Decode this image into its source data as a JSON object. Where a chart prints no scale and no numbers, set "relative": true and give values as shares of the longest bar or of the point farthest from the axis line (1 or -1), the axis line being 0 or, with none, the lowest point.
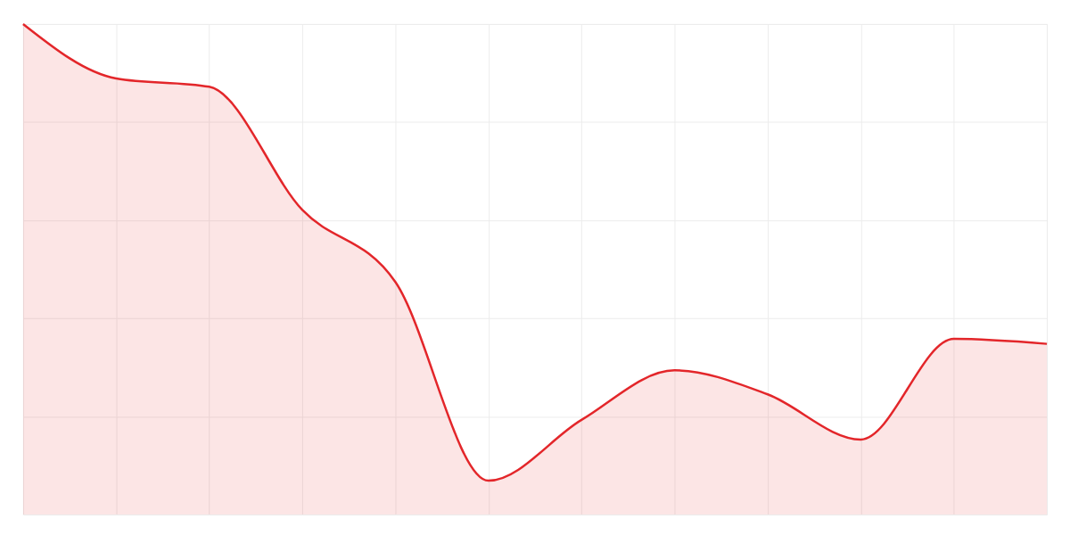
{
  "chart_data": {
    "type": "area",
    "relative": true,
    "grid": true,
    "tick_labels": false,
    "categories": [
      null,
      null,
      null,
      null,
      null,
      null,
      null,
      null,
      null,
      null,
      null,
      null
    ],
    "series": [
      {
        "color": "#e3262a",
        "values": [
          1,
          0.889,
          0.872,
          0.621,
          0.474,
          0.069,
          0.193,
          0.294,
          0.245,
          0.153,
          0.358,
          0.348
        ]
      }
    ]
  }
}
